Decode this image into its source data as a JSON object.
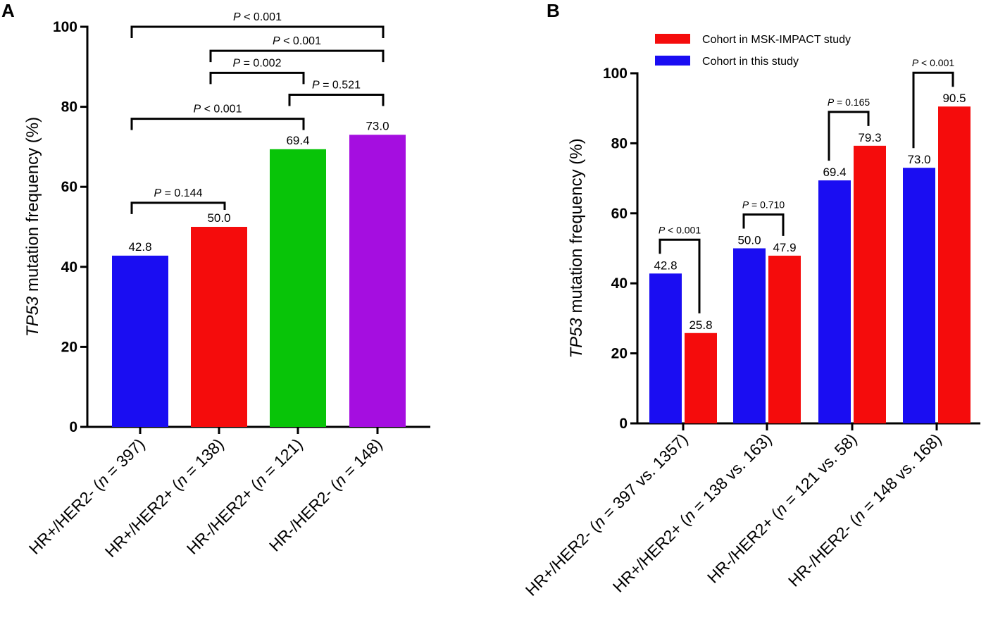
{
  "chart_data": [
    {
      "panel": "A",
      "type": "bar",
      "ylabel_italic": "TP53",
      "ylabel_rest": " mutation frequency (%)",
      "ylim": [
        0,
        100
      ],
      "yticks": [
        0,
        20,
        40,
        60,
        80,
        100
      ],
      "categories": [
        {
          "main": "HR+/HER2- (",
          "italic": "n",
          "rest": " = 397)"
        },
        {
          "main": "HR+/HER2+ (",
          "italic": "n",
          "rest": " = 138)"
        },
        {
          "main": "HR-/HER2+ (",
          "italic": "n",
          "rest": " = 121)"
        },
        {
          "main": "HR-/HER2- (",
          "italic": "n",
          "rest": " = 148)"
        }
      ],
      "values": [
        42.8,
        50.0,
        69.4,
        73.0
      ],
      "value_labels": [
        "42.8",
        "50.0",
        "69.4",
        "73.0"
      ],
      "colors": [
        "#1a0df2",
        "#f50c0c",
        "#08c408",
        "#a50ee0"
      ],
      "comparisons": [
        {
          "from": 0,
          "to": 1,
          "p_italic": "P",
          "p_text": " = 0.144",
          "level": 56
        },
        {
          "from": 0,
          "to": 2,
          "p_italic": "P",
          "p_text": " < 0.001",
          "level": 77
        },
        {
          "from": 2,
          "to": 3,
          "p_italic": "P",
          "p_text": " = 0.521",
          "level": 83
        },
        {
          "from": 1,
          "to": 2,
          "p_italic": "P",
          "p_text": " = 0.002",
          "level": 88.5
        },
        {
          "from": 1,
          "to": 3,
          "p_italic": "P",
          "p_text": " < 0.001",
          "level": 94
        },
        {
          "from": 0,
          "to": 3,
          "p_italic": "P",
          "p_text": " < 0.001",
          "level": 100
        }
      ]
    },
    {
      "panel": "B",
      "type": "bar",
      "ylabel_italic": "TP53",
      "ylabel_rest": " mutation frequency (%)",
      "ylim": [
        0,
        100
      ],
      "yticks": [
        0,
        20,
        40,
        60,
        80,
        100
      ],
      "legend_position": "top",
      "categories": [
        {
          "main": "HR+/HER2- (",
          "italic": "n",
          "rest": " = 397 vs. 1357)"
        },
        {
          "main": "HR+/HER2+ (",
          "italic": "n",
          "rest": " = 138 vs. 163)"
        },
        {
          "main": "HR-/HER2+ (",
          "italic": "n",
          "rest": " = 121 vs. 58)"
        },
        {
          "main": "HR-/HER2- (",
          "italic": "n",
          "rest": " = 148 vs. 168)"
        }
      ],
      "series": [
        {
          "name": "Cohort in this study",
          "color": "#1a0df2",
          "values": [
            42.8,
            50.0,
            69.4,
            73.0
          ],
          "value_labels": [
            "42.8",
            "50.0",
            "69.4",
            "73.0"
          ]
        },
        {
          "name": "Cohort in MSK-IMPACT study",
          "color": "#f50c0c",
          "values": [
            25.8,
            47.9,
            79.3,
            90.5
          ],
          "value_labels": [
            "25.8",
            "47.9",
            "79.3",
            "90.5"
          ]
        }
      ],
      "legend_order": [
        "Cohort in MSK-IMPACT study",
        "Cohort in this study"
      ],
      "comparisons": [
        {
          "category": 0,
          "p_italic": "P",
          "p_text": " < 0.001"
        },
        {
          "category": 1,
          "p_italic": "P",
          "p_text": " = 0.710"
        },
        {
          "category": 2,
          "p_italic": "P",
          "p_text": " = 0.165"
        },
        {
          "category": 3,
          "p_italic": "P",
          "p_text": " < 0.001"
        }
      ]
    }
  ]
}
